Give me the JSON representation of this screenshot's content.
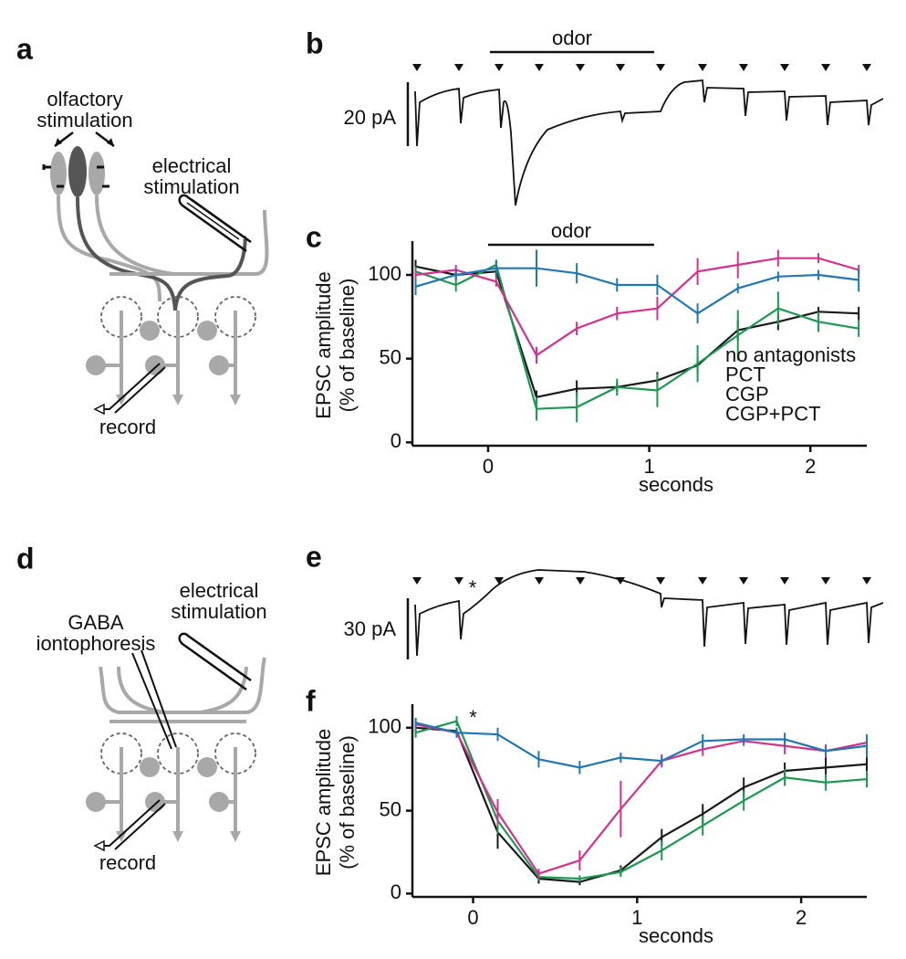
{
  "panels": {
    "a": {
      "label": "a",
      "olfactory_stimulation": [
        "olfactory",
        "stimulation"
      ],
      "electrical_stimulation": [
        "electrical",
        "stimulation"
      ],
      "record": "record"
    },
    "b": {
      "label": "b",
      "odor": "odor",
      "scale": "20 pA"
    },
    "c": {
      "label": "c"
    },
    "d": {
      "label": "d",
      "electrical_stimulation": [
        "electrical",
        "stimulation"
      ],
      "gaba_iontophoresis": [
        "GABA",
        "iontophoresis"
      ],
      "record": "record"
    },
    "e": {
      "label": "e",
      "marker": "*",
      "scale": "30 pA"
    },
    "f": {
      "label": "f"
    }
  },
  "chart_data": [
    {
      "type": "line",
      "ylabel": [
        "EPSC amplitude",
        "(% of baseline)"
      ],
      "xlabel": "seconds",
      "annotation": "odor",
      "annotation_span": [
        0,
        1.03
      ],
      "legend": "lower right",
      "x": [
        -0.45,
        -0.2,
        0.05,
        0.3,
        0.55,
        0.8,
        1.05,
        1.3,
        1.55,
        1.8,
        2.05,
        2.3
      ],
      "xlim": [
        -0.47,
        2.35
      ],
      "ylim": [
        -2,
        118
      ],
      "xticks": [
        0,
        1,
        2
      ],
      "yticks": [
        0,
        50,
        100
      ],
      "series": [
        {
          "name": "no antagonists",
          "color": "#1a1a1a",
          "values": [
            105,
            100,
            102,
            27,
            32,
            33,
            37,
            46,
            67,
            72,
            78,
            77
          ],
          "errors": [
            4,
            3,
            3,
            4,
            5,
            3,
            5,
            5,
            6,
            5,
            3,
            4
          ]
        },
        {
          "name": "PCT",
          "color": "#1a9a50",
          "values": [
            102,
            94,
            106,
            20,
            21,
            33,
            31,
            47,
            64,
            80,
            72,
            68
          ],
          "errors": [
            3,
            4,
            3,
            7,
            9,
            5,
            10,
            11,
            15,
            10,
            6,
            5
          ]
        },
        {
          "name": "CGP",
          "color": "#d6318c",
          "values": [
            100,
            103,
            96,
            52,
            68,
            77,
            80,
            102,
            106,
            110,
            110,
            103
          ],
          "errors": [
            3,
            3,
            3,
            5,
            4,
            4,
            7,
            8,
            8,
            5,
            3,
            3
          ]
        },
        {
          "name": "CGP+PCT",
          "color": "#1f78b4",
          "values": [
            93,
            100,
            104,
            104,
            101,
            94,
            94,
            77,
            92,
            99,
            100,
            97
          ],
          "errors": [
            5,
            3,
            5,
            11,
            6,
            4,
            6,
            6,
            3,
            3,
            3,
            7
          ]
        }
      ]
    },
    {
      "type": "line",
      "ylabel": [
        "EPSC amplitude",
        "(% of baseline)"
      ],
      "xlabel": "seconds",
      "annotation": "*",
      "annotation_x": 0,
      "x": [
        -0.35,
        -0.1,
        0.15,
        0.4,
        0.65,
        0.9,
        1.15,
        1.4,
        1.65,
        1.9,
        2.15,
        2.4
      ],
      "xlim": [
        -0.37,
        2.4
      ],
      "ylim": [
        -2,
        112
      ],
      "xticks": [
        0,
        1,
        2
      ],
      "yticks": [
        0,
        50,
        100
      ],
      "series": [
        {
          "color": "#1a1a1a",
          "values": [
            100,
            98,
            37,
            9,
            7,
            14,
            34,
            48,
            64,
            74,
            76,
            78
          ],
          "errors": [
            3,
            2,
            10,
            3,
            2,
            3,
            5,
            6,
            6,
            5,
            6,
            6
          ]
        },
        {
          "color": "#1a9a50",
          "values": [
            97,
            104,
            44,
            10,
            9,
            13,
            26,
            41,
            56,
            70,
            67,
            69
          ],
          "errors": [
            3,
            3,
            8,
            2,
            2,
            3,
            6,
            6,
            6,
            5,
            5,
            5
          ]
        },
        {
          "color": "#d6318c",
          "values": [
            102,
            97,
            49,
            12,
            20,
            51,
            80,
            87,
            92,
            89,
            86,
            91
          ],
          "errors": [
            3,
            3,
            8,
            3,
            6,
            17,
            4,
            4,
            3,
            5,
            4,
            5
          ]
        },
        {
          "color": "#1f78b4",
          "values": [
            103,
            97,
            96,
            81,
            76,
            82,
            80,
            92,
            93,
            93,
            86,
            89
          ],
          "errors": [
            3,
            3,
            4,
            5,
            4,
            3,
            3,
            4,
            3,
            4,
            3,
            7
          ]
        }
      ]
    }
  ]
}
